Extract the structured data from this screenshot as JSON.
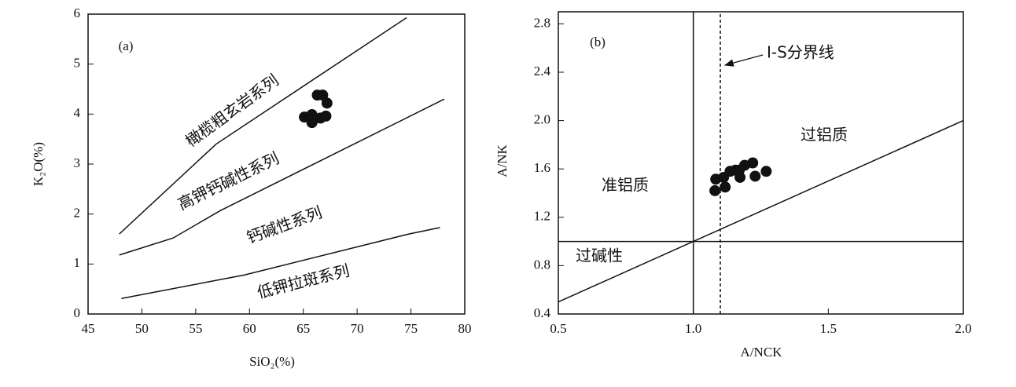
{
  "chart_data": [
    {
      "type": "scatter",
      "panel_label": "(a)",
      "x_label": "SiO₂(%)",
      "y_label": "K₂O(%)",
      "xlim": [
        45,
        80
      ],
      "ylim": [
        0,
        6
      ],
      "xticks": [
        45,
        50,
        55,
        60,
        65,
        70,
        75,
        80
      ],
      "yticks": [
        0,
        1,
        2,
        3,
        4,
        5,
        6
      ],
      "color": "#111111",
      "x": [
        65.1,
        65.8,
        65.8,
        66.3,
        66.8,
        66.6,
        67.1,
        67.2,
        66.0,
        65.6
      ],
      "values": [
        3.94,
        3.99,
        3.83,
        4.38,
        4.38,
        3.92,
        3.96,
        4.22,
        3.9,
        3.95
      ],
      "lines": [
        {
          "x": [
            47.9,
            56.9,
            74.6
          ],
          "y": [
            1.6,
            3.4,
            5.93
          ]
        },
        {
          "x": [
            47.9,
            52.9,
            57.3,
            78.1
          ],
          "y": [
            1.18,
            1.52,
            2.07,
            4.3
          ]
        },
        {
          "x": [
            48.1,
            59.5,
            74.8,
            77.7
          ],
          "y": [
            0.31,
            0.78,
            1.6,
            1.73
          ]
        }
      ],
      "annotations": [
        "橄榄粗玄岩系列",
        "高钾钙碱性系列",
        "钙碱性系列",
        "低钾拉斑系列"
      ]
    },
    {
      "type": "scatter",
      "panel_label": "(b)",
      "x_label": "A/NCK",
      "y_label": "A/NK",
      "xlim": [
        0.5,
        2.0
      ],
      "ylim": [
        0.4,
        2.9
      ],
      "xticks": [
        0.5,
        {
          "value": 1.0,
          "label": "1.0"
        },
        1.5,
        {
          "value": 2.0,
          "label": "2.0"
        }
      ],
      "yticks": [
        0.4,
        0.8,
        1.2,
        1.6,
        {
          "value": 2.0,
          "label": "2.0"
        },
        2.4,
        2.8
      ],
      "color": "#111111",
      "x": [
        1.083,
        1.112,
        1.136,
        1.156,
        1.173,
        1.19,
        1.22,
        1.229,
        1.27,
        1.08,
        1.118,
        1.17
      ],
      "values": [
        1.515,
        1.53,
        1.58,
        1.59,
        1.53,
        1.63,
        1.65,
        1.54,
        1.58,
        1.42,
        1.45,
        1.59
      ],
      "lines": [
        {
          "x": [
            1.0,
            1.0
          ],
          "y": [
            0.4,
            2.9
          ],
          "dashed": false
        },
        {
          "x": [
            1.1,
            1.1
          ],
          "y": [
            0.4,
            2.9
          ],
          "dashed": true
        },
        {
          "x": [
            0.5,
            2.0
          ],
          "y": [
            1.0,
            1.0
          ],
          "dashed": false
        },
        {
          "x": [
            0.5,
            2.0
          ],
          "y": [
            0.5,
            2.0
          ],
          "dashed": false
        }
      ],
      "annotations": [
        "I-S分界线",
        "过铝质",
        "准铝质",
        "过碱性"
      ]
    }
  ]
}
